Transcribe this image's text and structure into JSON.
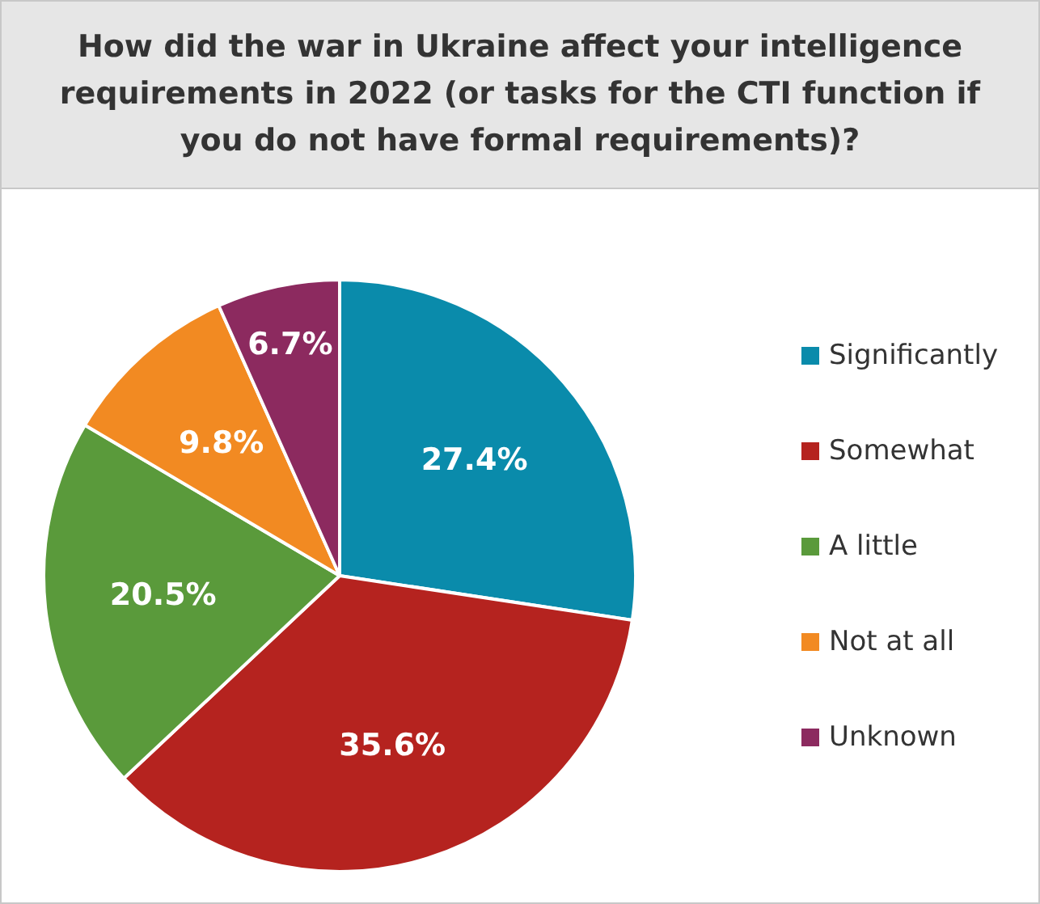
{
  "chart_data": {
    "type": "pie",
    "title": "How did the war in Ukraine affect your intelligence requirements in 2022 (or tasks for the CTI function if you do not have formal requirements)?",
    "categories": [
      "Significantly",
      "Somewhat",
      "A little",
      "Not at all",
      "Unknown"
    ],
    "values": [
      27.4,
      35.6,
      20.5,
      9.8,
      6.7
    ],
    "colors": [
      "#0a8bab",
      "#b5231f",
      "#5a9a3b",
      "#f28a22",
      "#8c2a5f"
    ],
    "value_labels": [
      "27.4%",
      "35.6%",
      "20.5%",
      "9.8%",
      "6.7%"
    ],
    "legend": "right"
  }
}
